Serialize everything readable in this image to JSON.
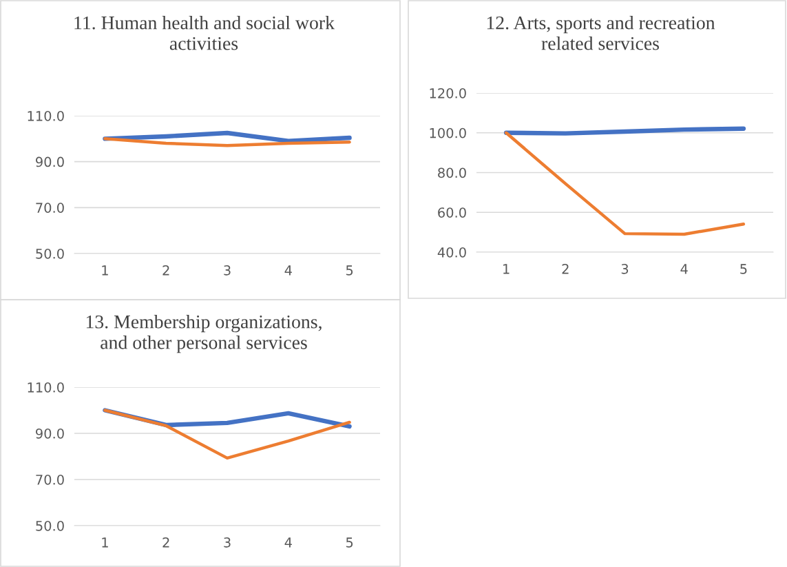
{
  "chart_data": [
    {
      "type": "line",
      "title": "11. Human health and social work activities",
      "categories": [
        "1",
        "2",
        "3",
        "4",
        "5"
      ],
      "series": [
        {
          "color": "#4472c4",
          "values": [
            100,
            101,
            102.5,
            99,
            100.4
          ]
        },
        {
          "color": "#ed7d31",
          "values": [
            100,
            98,
            97,
            98,
            98.5
          ]
        }
      ],
      "ylim": [
        50,
        110
      ],
      "yticks": [
        {
          "value": 50,
          "label": "50.0"
        },
        {
          "value": 70,
          "label": "70.0"
        },
        {
          "value": 90,
          "label": "90.0"
        },
        {
          "value": 110,
          "label": "110.0"
        }
      ],
      "grid": "y",
      "legend": false
    },
    {
      "type": "line",
      "title": "12. Arts, sports and recreation related services",
      "categories": [
        "1",
        "2",
        "3",
        "4",
        "5"
      ],
      "series": [
        {
          "color": "#4472c4",
          "values": [
            100,
            99.7,
            100.6,
            101.6,
            102.1
          ]
        },
        {
          "color": "#ed7d31",
          "values": [
            100,
            74.4,
            49.3,
            49,
            54.1
          ]
        }
      ],
      "ylim": [
        40,
        120
      ],
      "yticks": [
        {
          "value": 40,
          "label": "40.0"
        },
        {
          "value": 60,
          "label": "60.0"
        },
        {
          "value": 80,
          "label": "80.0"
        },
        {
          "value": 100,
          "label": "100.0"
        },
        {
          "value": 120,
          "label": "120.0"
        }
      ],
      "grid": "y",
      "legend": false
    },
    {
      "type": "line",
      "title": "13. Membership organizations, and other personal services",
      "categories": [
        "1",
        "2",
        "3",
        "4",
        "5"
      ],
      "series": [
        {
          "color": "#4472c4",
          "values": [
            100,
            93.6,
            94.5,
            98.7,
            93
          ]
        },
        {
          "color": "#ed7d31",
          "values": [
            100,
            93.3,
            79.3,
            86.7,
            94.8
          ]
        }
      ],
      "ylim": [
        50,
        110
      ],
      "yticks": [
        {
          "value": 50,
          "label": "50.0"
        },
        {
          "value": 70,
          "label": "70.0"
        },
        {
          "value": 90,
          "label": "90.0"
        },
        {
          "value": 110,
          "label": "110.0"
        }
      ],
      "grid": "y",
      "legend": false
    }
  ]
}
